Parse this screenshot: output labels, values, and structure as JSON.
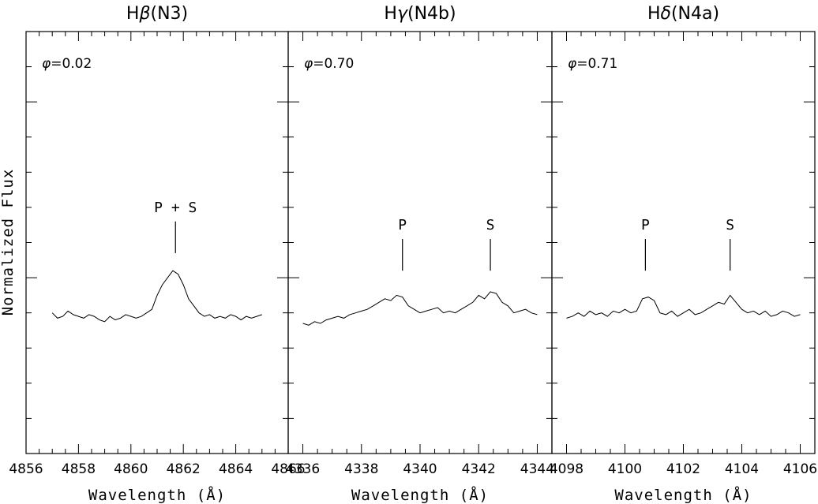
{
  "chart_data": {
    "type": "line",
    "ylabel": "Normalized Flux",
    "ylim": [
      0.6,
      1.8
    ],
    "panels": [
      {
        "title_base": "H",
        "title_greek": "β",
        "title_suffix": "(N3)",
        "phase_symbol": "φ",
        "phase_value": "=0.02",
        "xlabel": "Wavelength (Å)",
        "xlim": [
          4856,
          4866
        ],
        "xticks": [
          4856,
          4858,
          4860,
          4862,
          4864,
          4866
        ],
        "markers": [
          {
            "label": "P + S",
            "x": 4861.7,
            "y_bottom": 1.17,
            "y_top": 1.26
          }
        ],
        "series": [
          {
            "x": [
              4857.0,
              4857.2,
              4857.4,
              4857.6,
              4857.8,
              4858.0,
              4858.2,
              4858.4,
              4858.6,
              4858.8,
              4859.0,
              4859.2,
              4859.4,
              4859.6,
              4859.8,
              4860.0,
              4860.2,
              4860.4,
              4860.6,
              4860.8,
              4861.0,
              4861.2,
              4861.4,
              4861.6,
              4861.8,
              4862.0,
              4862.2,
              4862.4,
              4862.6,
              4862.8,
              4863.0,
              4863.2,
              4863.4,
              4863.6,
              4863.8,
              4864.0,
              4864.2,
              4864.4,
              4864.6,
              4864.8,
              4865.0
            ],
            "y": [
              1.0,
              0.985,
              0.99,
              1.005,
              0.995,
              0.99,
              0.985,
              0.995,
              0.99,
              0.98,
              0.975,
              0.99,
              0.98,
              0.985,
              0.995,
              0.99,
              0.985,
              0.99,
              1.0,
              1.01,
              1.05,
              1.08,
              1.1,
              1.12,
              1.11,
              1.08,
              1.04,
              1.02,
              1.0,
              0.99,
              0.995,
              0.985,
              0.99,
              0.985,
              0.995,
              0.99,
              0.98,
              0.99,
              0.985,
              0.99,
              0.995
            ]
          }
        ]
      },
      {
        "title_base": "H",
        "title_greek": "γ",
        "title_suffix": "(N4b)",
        "phase_symbol": "φ",
        "phase_value": "=0.70",
        "xlabel": "Wavelength (Å)",
        "xlim": [
          4335.5,
          4344.5
        ],
        "xticks": [
          4336,
          4338,
          4340,
          4342,
          4344
        ],
        "markers": [
          {
            "label": "P",
            "x": 4339.4,
            "y_bottom": 1.12,
            "y_top": 1.21
          },
          {
            "label": "S",
            "x": 4342.4,
            "y_bottom": 1.12,
            "y_top": 1.21
          }
        ],
        "series": [
          {
            "x": [
              4336.0,
              4336.2,
              4336.4,
              4336.6,
              4336.8,
              4337.0,
              4337.2,
              4337.4,
              4337.6,
              4337.8,
              4338.0,
              4338.2,
              4338.4,
              4338.6,
              4338.8,
              4339.0,
              4339.2,
              4339.4,
              4339.6,
              4339.8,
              4340.0,
              4340.2,
              4340.4,
              4340.6,
              4340.8,
              4341.0,
              4341.2,
              4341.4,
              4341.6,
              4341.8,
              4342.0,
              4342.2,
              4342.4,
              4342.6,
              4342.8,
              4343.0,
              4343.2,
              4343.4,
              4343.6,
              4343.8,
              4344.0
            ],
            "y": [
              0.97,
              0.965,
              0.975,
              0.97,
              0.98,
              0.985,
              0.99,
              0.985,
              0.995,
              1.0,
              1.005,
              1.01,
              1.02,
              1.03,
              1.04,
              1.035,
              1.05,
              1.045,
              1.02,
              1.01,
              1.0,
              1.005,
              1.01,
              1.015,
              1.0,
              1.005,
              1.0,
              1.01,
              1.02,
              1.03,
              1.05,
              1.04,
              1.06,
              1.055,
              1.03,
              1.02,
              1.0,
              1.005,
              1.01,
              1.0,
              0.995
            ]
          }
        ]
      },
      {
        "title_base": "H",
        "title_greek": "δ",
        "title_suffix": "(N4a)",
        "phase_symbol": "φ",
        "phase_value": "=0.71",
        "xlabel": "Wavelength (Å)",
        "xlim": [
          4097.5,
          4106.5
        ],
        "xticks": [
          4098,
          4100,
          4102,
          4104,
          4106
        ],
        "markers": [
          {
            "label": "P",
            "x": 4100.7,
            "y_bottom": 1.12,
            "y_top": 1.21
          },
          {
            "label": "S",
            "x": 4103.6,
            "y_bottom": 1.12,
            "y_top": 1.21
          }
        ],
        "series": [
          {
            "x": [
              4098.0,
              4098.2,
              4098.4,
              4098.6,
              4098.8,
              4099.0,
              4099.2,
              4099.4,
              4099.6,
              4099.8,
              4100.0,
              4100.2,
              4100.4,
              4100.6,
              4100.8,
              4101.0,
              4101.2,
              4101.4,
              4101.6,
              4101.8,
              4102.0,
              4102.2,
              4102.4,
              4102.6,
              4102.8,
              4103.0,
              4103.2,
              4103.4,
              4103.6,
              4103.8,
              4104.0,
              4104.2,
              4104.4,
              4104.6,
              4104.8,
              4105.0,
              4105.2,
              4105.4,
              4105.6,
              4105.8,
              4106.0
            ],
            "y": [
              0.985,
              0.99,
              1.0,
              0.99,
              1.005,
              0.995,
              1.0,
              0.99,
              1.005,
              1.0,
              1.01,
              1.0,
              1.005,
              1.04,
              1.045,
              1.035,
              1.0,
              0.995,
              1.005,
              0.99,
              1.0,
              1.01,
              0.995,
              1.0,
              1.01,
              1.02,
              1.03,
              1.025,
              1.05,
              1.03,
              1.01,
              1.0,
              1.005,
              0.995,
              1.005,
              0.99,
              0.995,
              1.005,
              1.0,
              0.99,
              0.995
            ]
          }
        ]
      }
    ]
  }
}
